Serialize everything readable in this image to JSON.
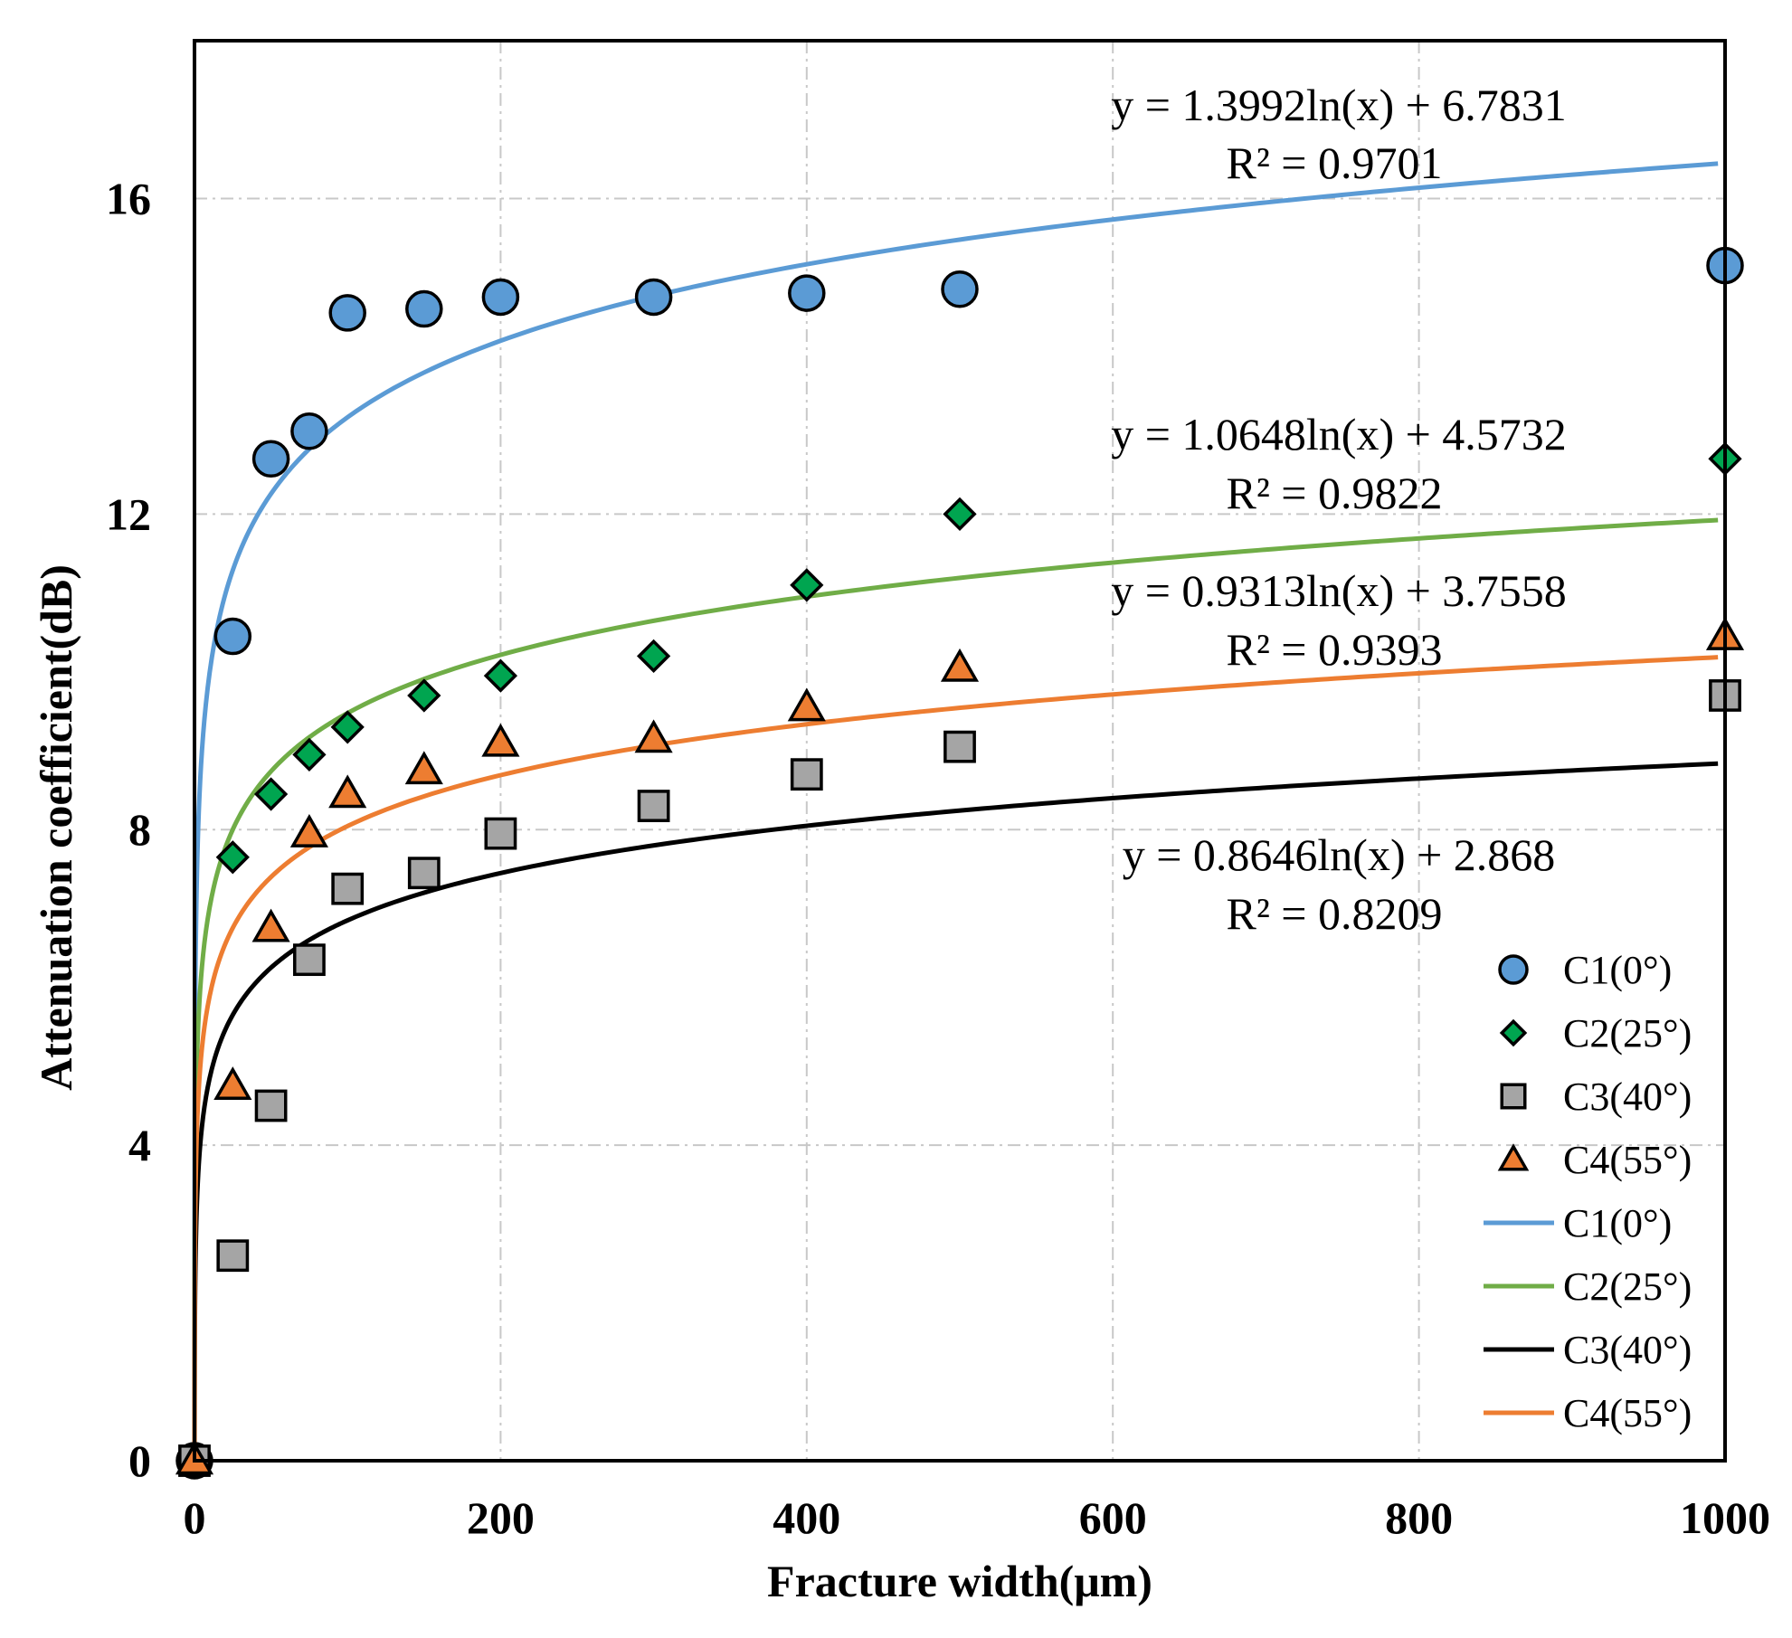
{
  "chart_data": {
    "type": "scatter",
    "title": "",
    "xlabel": "Fracture width(μm)",
    "ylabel": "Attenuation coefficient(dB)",
    "xlim": [
      0,
      1000
    ],
    "ylim": [
      0,
      18
    ],
    "xticks": [
      0,
      200,
      400,
      600,
      800,
      1000
    ],
    "xtick_labels": [
      "0",
      "200",
      "400",
      "600",
      "800",
      "1000"
    ],
    "yticks": [
      0,
      4,
      8,
      12,
      16
    ],
    "ytick_labels": [
      "0",
      "4",
      "8",
      "12",
      "16"
    ],
    "grid": true,
    "legend_position": "bottom-right",
    "x": [
      0,
      25,
      50,
      75,
      100,
      150,
      200,
      300,
      400,
      500,
      1000
    ],
    "series": [
      {
        "name": "C1(0°)",
        "marker": "circle",
        "color": "#5b9bd5",
        "line_color": "#5b9bd5",
        "values": [
          0,
          10.45,
          12.7,
          13.05,
          14.55,
          14.6,
          14.75,
          14.75,
          14.8,
          14.85,
          15.15
        ],
        "fit": {
          "a": 1.3992,
          "b": 6.7831,
          "equation": "y = 1.3992ln(x) + 6.7831",
          "r2": "R² = 0.9701"
        }
      },
      {
        "name": "C2(25°)",
        "marker": "diamond",
        "color": "#00a550",
        "line_color": "#70ad47",
        "values": [
          0,
          7.65,
          8.45,
          8.95,
          9.3,
          9.7,
          9.95,
          10.2,
          11.1,
          12.0,
          12.7
        ],
        "fit": {
          "a": 1.0648,
          "b": 4.5732,
          "equation": "y = 1.0648ln(x) + 4.5732",
          "r2": "R² = 0.9822"
        }
      },
      {
        "name": "C3(40°)",
        "marker": "square",
        "color": "#a5a5a5",
        "line_color": "#000000",
        "values": [
          0,
          2.6,
          4.5,
          6.35,
          7.25,
          7.45,
          7.95,
          8.3,
          8.7,
          9.05,
          9.7
        ],
        "fit": {
          "a": 0.8646,
          "b": 2.868,
          "equation": "y = 0.8646ln(x) + 2.868",
          "r2": "R² = 0.8209"
        }
      },
      {
        "name": "C4(55°)",
        "marker": "triangle",
        "color": "#ed7d31",
        "line_color": "#ed7d31",
        "values": [
          0,
          4.75,
          6.75,
          7.95,
          8.45,
          8.75,
          9.1,
          9.15,
          9.55,
          10.05,
          10.45
        ],
        "fit": {
          "a": 0.9313,
          "b": 3.7558,
          "equation": "y = 0.9313ln(x) + 3.7558",
          "r2": "R² = 0.9393"
        }
      }
    ]
  }
}
